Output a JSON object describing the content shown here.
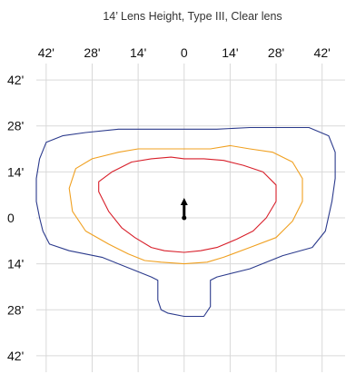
{
  "chart_data": {
    "type": "contour",
    "title": "14’ Lens Height, Type III, Clear lens",
    "units": "ft",
    "x_ticks": [
      {
        "value": -42,
        "label": "42'"
      },
      {
        "value": -28,
        "label": "28'"
      },
      {
        "value": -14,
        "label": "14'"
      },
      {
        "value": 0,
        "label": "0"
      },
      {
        "value": 14,
        "label": "14'"
      },
      {
        "value": 28,
        "label": "28'"
      },
      {
        "value": 42,
        "label": "42'"
      }
    ],
    "y_ticks": [
      {
        "value": 42,
        "label": "42'"
      },
      {
        "value": 28,
        "label": "28'"
      },
      {
        "value": 14,
        "label": "14'"
      },
      {
        "value": 0,
        "label": "0"
      },
      {
        "value": -14,
        "label": "14'"
      },
      {
        "value": -28,
        "label": "28'"
      },
      {
        "value": -42,
        "label": "42'"
      }
    ],
    "xlim": [
      -45,
      49
    ],
    "ylim": [
      -47,
      47
    ],
    "grid": true,
    "legend": "none",
    "series": [
      {
        "color": "#2b3a8c",
        "points": [
          [
            0,
            27
          ],
          [
            10,
            27
          ],
          [
            20,
            27.5
          ],
          [
            30,
            27.5
          ],
          [
            38,
            27.5
          ],
          [
            44,
            25
          ],
          [
            46,
            20
          ],
          [
            46,
            12
          ],
          [
            45,
            5
          ],
          [
            43,
            -4
          ],
          [
            39,
            -9
          ],
          [
            30,
            -11.5
          ],
          [
            20,
            -15.5
          ],
          [
            10,
            -18
          ],
          [
            8,
            -19
          ],
          [
            8,
            -27
          ],
          [
            6,
            -30
          ],
          [
            0,
            -30
          ],
          [
            -5,
            -29
          ],
          [
            -7,
            -28
          ],
          [
            -8,
            -25
          ],
          [
            -8,
            -19
          ],
          [
            -10,
            -18
          ],
          [
            -15,
            -16
          ],
          [
            -25,
            -12
          ],
          [
            -35,
            -10
          ],
          [
            -41,
            -8
          ],
          [
            -43,
            -4
          ],
          [
            -44,
            0
          ],
          [
            -45,
            5
          ],
          [
            -45,
            12
          ],
          [
            -44,
            18
          ],
          [
            -42,
            23
          ],
          [
            -37,
            25
          ],
          [
            -30,
            26
          ],
          [
            -20,
            27
          ],
          [
            -10,
            27
          ],
          [
            0,
            27
          ]
        ]
      },
      {
        "color": "#f0a020",
        "points": [
          [
            0,
            21
          ],
          [
            8,
            21
          ],
          [
            14,
            22
          ],
          [
            20,
            21
          ],
          [
            27,
            20
          ],
          [
            33,
            17
          ],
          [
            36,
            12
          ],
          [
            36,
            5
          ],
          [
            33,
            -1
          ],
          [
            28,
            -6
          ],
          [
            20,
            -9
          ],
          [
            12,
            -12
          ],
          [
            7,
            -13.5
          ],
          [
            0,
            -14
          ],
          [
            -7,
            -13.5
          ],
          [
            -12,
            -13
          ],
          [
            -17,
            -11
          ],
          [
            -23,
            -8
          ],
          [
            -30,
            -4
          ],
          [
            -34,
            2
          ],
          [
            -35,
            9
          ],
          [
            -33,
            15
          ],
          [
            -28,
            18
          ],
          [
            -20,
            20
          ],
          [
            -14,
            21
          ],
          [
            -8,
            21
          ],
          [
            0,
            21
          ]
        ]
      },
      {
        "color": "#d81f2a",
        "points": [
          [
            0,
            18
          ],
          [
            6,
            18
          ],
          [
            12,
            17.5
          ],
          [
            18,
            16
          ],
          [
            24,
            14
          ],
          [
            28,
            10
          ],
          [
            28,
            5
          ],
          [
            25,
            0
          ],
          [
            21,
            -4
          ],
          [
            16,
            -6.5
          ],
          [
            10,
            -9
          ],
          [
            5,
            -10
          ],
          [
            0,
            -10.5
          ],
          [
            -6,
            -10
          ],
          [
            -10,
            -9
          ],
          [
            -15,
            -6
          ],
          [
            -19,
            -3
          ],
          [
            -23,
            2
          ],
          [
            -26,
            8
          ],
          [
            -26,
            11
          ],
          [
            -22,
            14
          ],
          [
            -16,
            17
          ],
          [
            -10,
            18
          ],
          [
            -4,
            18.5
          ],
          [
            0,
            18
          ]
        ]
      }
    ],
    "markers": [
      {
        "type": "luminaire-arrow",
        "x": 0,
        "y": 0,
        "direction": "up"
      }
    ]
  }
}
